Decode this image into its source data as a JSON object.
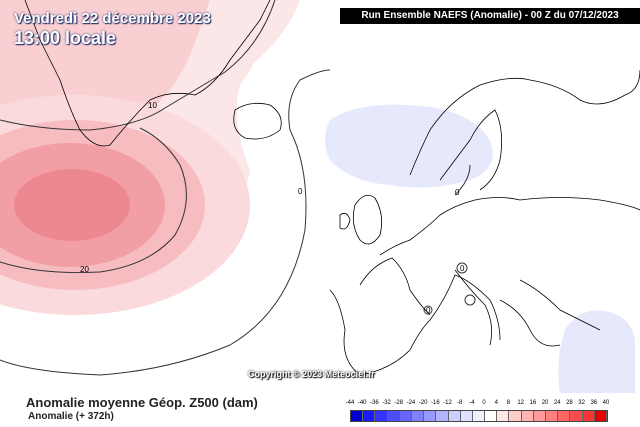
{
  "header": {
    "date": "Vendredi 22 décembre 2023",
    "time": "13:00 locale",
    "run": "Run Ensemble NAEFS  (Anomalie)  -  00 Z du 07/12/2023"
  },
  "map": {
    "contour_labels": [
      "10",
      "0",
      "20",
      "0",
      "0",
      "0"
    ],
    "copyright": "Copyright © 2023 Meteociel.fr"
  },
  "footer": {
    "title": "Anomalie moyenne Géop. Z500 (dam)",
    "subtitle": "Anomalie (+ 372h)"
  },
  "legend": {
    "labels": [
      "-44",
      "-40",
      "-36",
      "-32",
      "-28",
      "-24",
      "-20",
      "-16",
      "-12",
      "-8",
      "-4",
      "0",
      "4",
      "8",
      "12",
      "16",
      "20",
      "24",
      "28",
      "32",
      "36",
      "40"
    ],
    "colors": [
      "#0000cc",
      "#1a1aff",
      "#3333ff",
      "#4d4dff",
      "#6666ff",
      "#8080ff",
      "#9999ff",
      "#b3b3ff",
      "#ccccff",
      "#e0e0ff",
      "#f0f0ff",
      "#ffffff",
      "#ffe6e6",
      "#ffcccc",
      "#ffb3b3",
      "#ff9999",
      "#ff8080",
      "#ff6666",
      "#ff4d4d",
      "#ff3333",
      "#e60000"
    ]
  }
}
